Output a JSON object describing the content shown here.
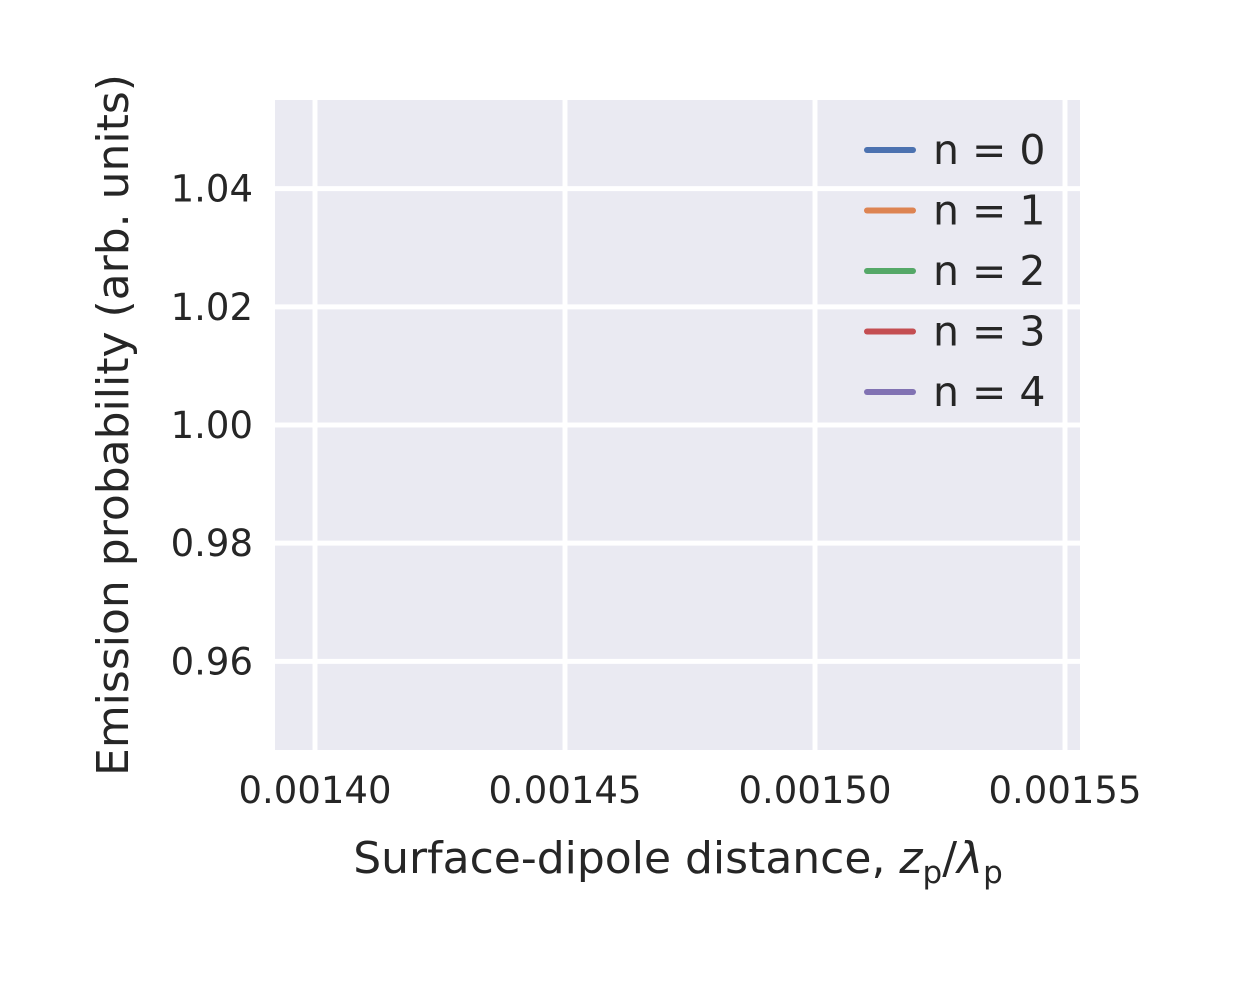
{
  "chart_data": {
    "type": "line",
    "title": "",
    "xlabel_parts": {
      "prefix": "Surface-dipole distance, ",
      "var1": "z",
      "sub1": "p",
      "slash": "/",
      "var2": "λ",
      "sub2": "p"
    },
    "ylabel": "Emission probability (arb. units)",
    "xlim": [
      0.001392,
      0.001553
    ],
    "ylim": [
      0.945,
      1.055
    ],
    "xticks": [
      0.0014,
      0.00145,
      0.0015,
      0.00155
    ],
    "xtick_labels": [
      "0.00140",
      "0.00145",
      "0.00150",
      "0.00155"
    ],
    "yticks": [
      0.96,
      0.98,
      1.0,
      1.02,
      1.04
    ],
    "ytick_labels": [
      "0.96",
      "0.98",
      "1.00",
      "1.02",
      "1.04"
    ],
    "grid": true,
    "legend_position": "top-right",
    "series": [
      {
        "name": "n = 0",
        "color": "#4c72b0",
        "x": [],
        "y": []
      },
      {
        "name": "n = 1",
        "color": "#dd8452",
        "x": [],
        "y": []
      },
      {
        "name": "n = 2",
        "color": "#55a868",
        "x": [],
        "y": []
      },
      {
        "name": "n = 3",
        "color": "#c44e52",
        "x": [],
        "y": []
      },
      {
        "name": "n = 4",
        "color": "#8172b3",
        "x": [],
        "y": []
      }
    ],
    "colors": {
      "plot_background": "#eaeaf2",
      "grid": "#ffffff",
      "text": "#262626"
    }
  }
}
